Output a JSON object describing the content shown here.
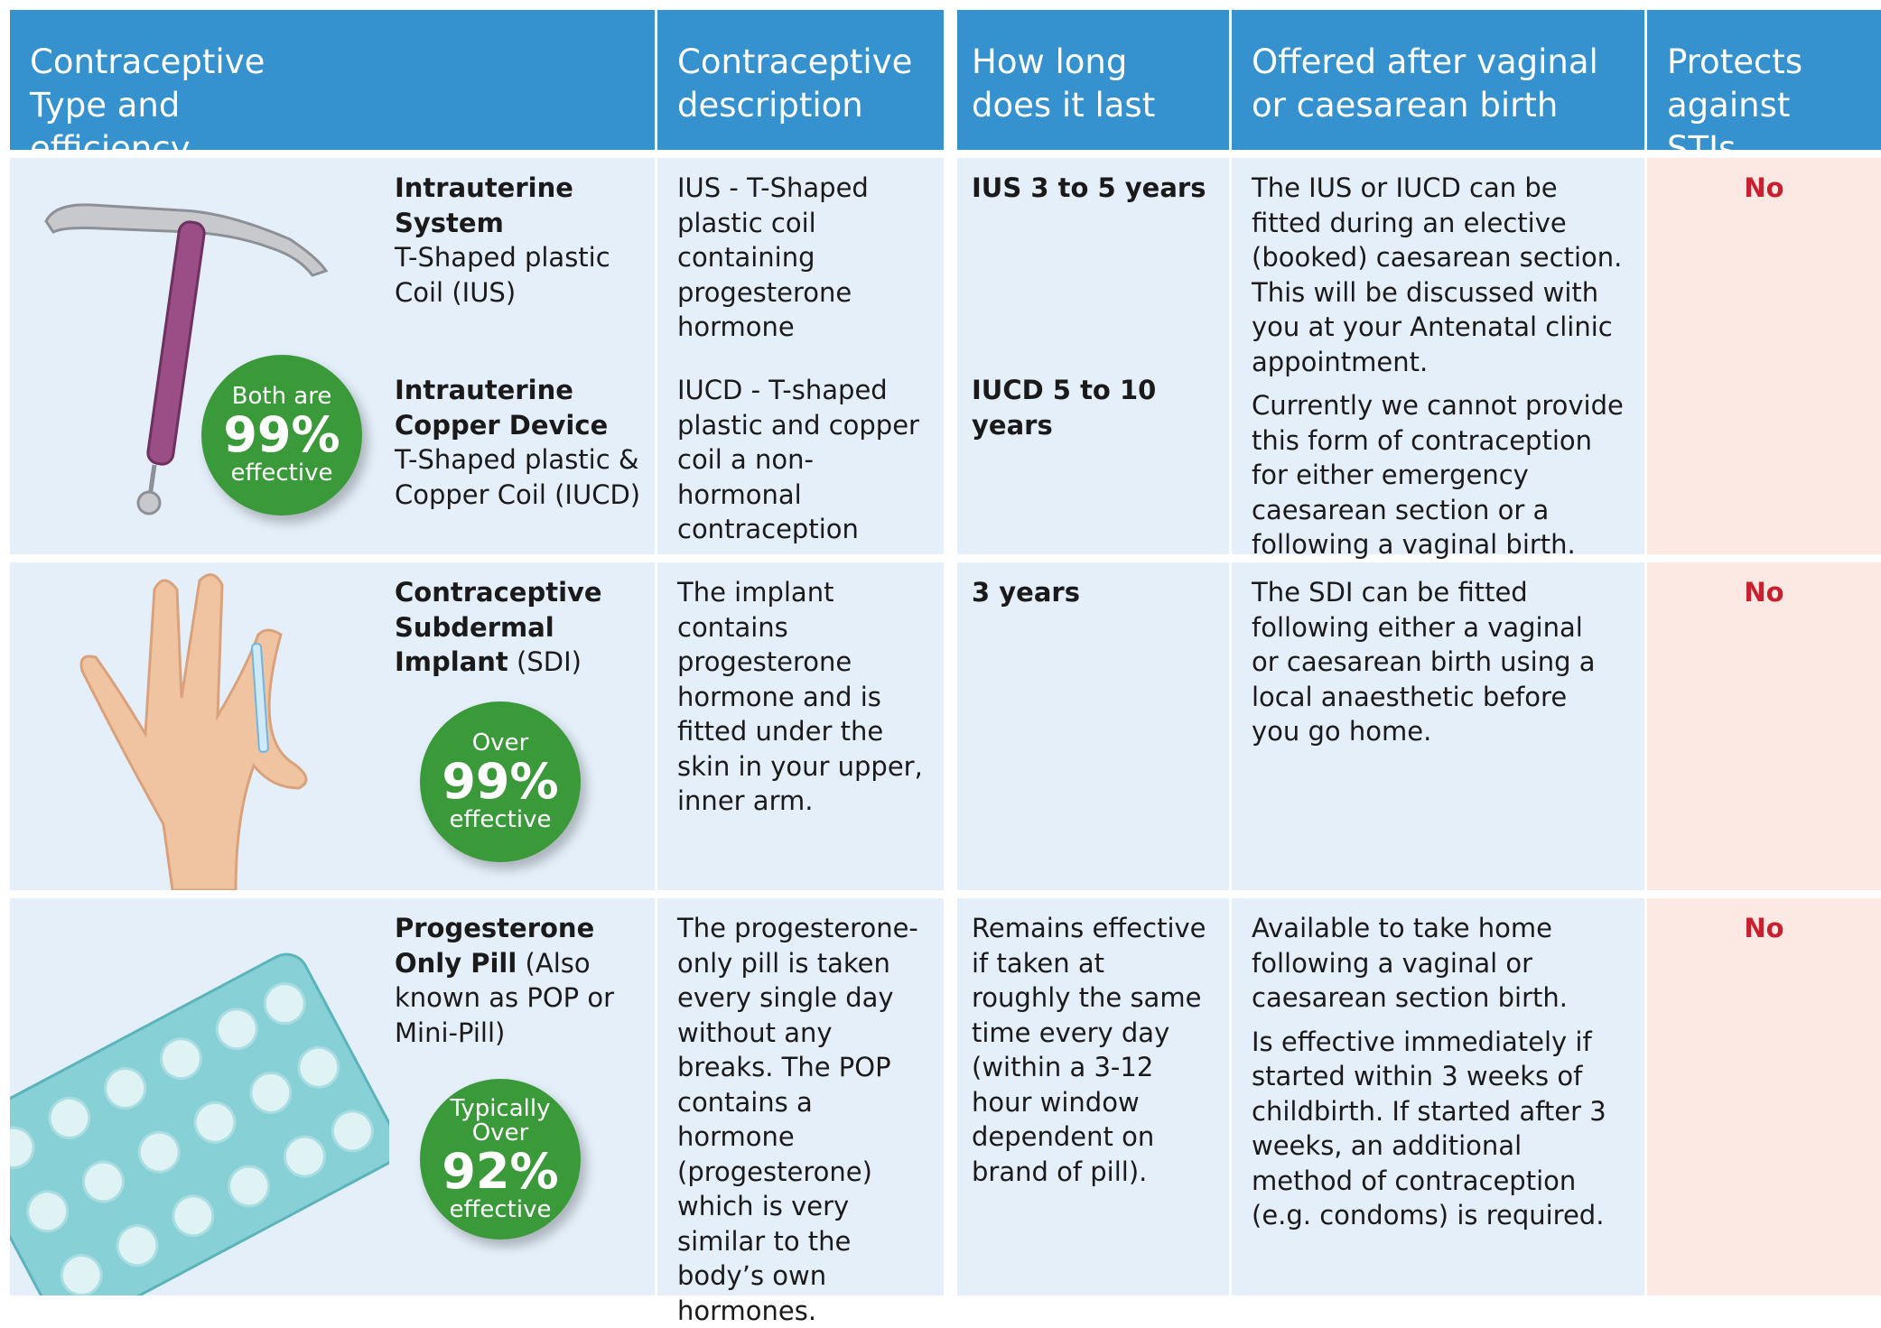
{
  "table": {
    "headers": [
      "Contraceptive Type and efficiency",
      "Contraceptive description",
      "How long does it last",
      "Offered after vaginal or caesarean birth",
      "Protects against STIs"
    ],
    "rows": [
      {
        "types": [
          {
            "name": "Intrauterine System",
            "detail": "T-Shaped plastic Coil (IUS)"
          },
          {
            "name": "Intrauterine Copper Device",
            "detail": "T-Shaped plastic & Copper Coil (IUCD)"
          }
        ],
        "badge": [
          "Both are",
          "99%",
          "effective"
        ],
        "descriptions": [
          "IUS - T-Shaped plastic coil containing progesterone hormone",
          "IUCD - T-shaped plastic and copper coil a non-hormonal contraception"
        ],
        "durations": [
          "IUS 3 to 5 years",
          "IUCD 5 to 10 years"
        ],
        "offered": [
          "The IUS or IUCD can be fitted during an elective (booked) caesarean section. This will be discussed with you at your Antenatal clinic appointment.",
          "Currently we cannot provide this form of contraception for either emergency caesarean section or a following a vaginal birth."
        ],
        "sti": "No"
      },
      {
        "types": [
          {
            "name": "Contraceptive Subdermal Implant",
            "detail": "(SDI)"
          }
        ],
        "badge": [
          "Over",
          "99%",
          "effective"
        ],
        "descriptions": [
          "The implant contains progesterone hormone and is fitted under the skin in your upper, inner arm."
        ],
        "durations": [
          "3 years"
        ],
        "offered": [
          "The SDI can be fitted following either a vaginal or caesarean birth using a local anaesthetic before you go home."
        ],
        "sti": "No"
      },
      {
        "types": [
          {
            "name": "Progesterone Only Pill",
            "detail": "(Also known as POP or Mini-Pill)"
          }
        ],
        "badge": [
          "Typically Over",
          "92%",
          "effective"
        ],
        "descriptions": [
          "The progesterone-only pill is taken every single day without any breaks. The POP contains a hormone (progesterone) which is very similar to the body’s own hormones."
        ],
        "durations": [
          "Remains effective if taken at roughly the same time every day (within a 3-12 hour window dependent on brand of pill)."
        ],
        "offered": [
          "Available to take home following a vaginal or caesarean section birth.",
          "Is effective immediately if started within 3 weeks of childbirth. If started after 3 weeks, an additional method of contraception (e.g. condoms) is required."
        ],
        "sti": "No"
      }
    ]
  }
}
